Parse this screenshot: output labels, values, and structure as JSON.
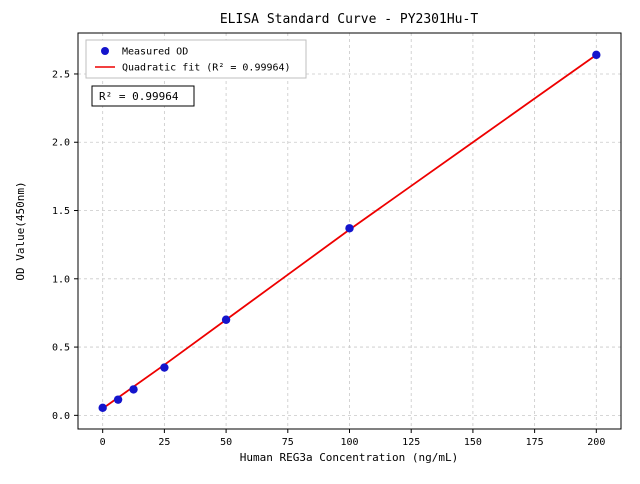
{
  "chart": {
    "colors": {
      "points": "#1414cc",
      "fit_line": "#ee0000",
      "grid": "#c9c9c9",
      "axes_border": "#000000",
      "legend_border": "#bfbfbf",
      "background": "#ffffff"
    }
  },
  "chart_data": {
    "type": "scatter",
    "title": "ELISA Standard Curve - PY2301Hu-T",
    "xlabel": "Human REG3a Concentration (ng/mL)",
    "ylabel": "OD Value(450nm)",
    "xlim": [
      -10,
      210
    ],
    "ylim": [
      -0.1,
      2.8
    ],
    "xticks": [
      0,
      25,
      50,
      75,
      100,
      125,
      150,
      175,
      200
    ],
    "yticks": [
      0.0,
      0.5,
      1.0,
      1.5,
      2.0,
      2.5
    ],
    "grid": true,
    "grid_style": "dashed",
    "legend_position": "upper left",
    "annotation": "R² = 0.99964",
    "r_squared": 0.99964,
    "series": [
      {
        "name": "Measured OD",
        "type": "scatter",
        "color": "#1414cc",
        "x": [
          0,
          6.25,
          12.5,
          25,
          50,
          100,
          200
        ],
        "y": [
          0.055,
          0.115,
          0.19,
          0.35,
          0.7,
          1.37,
          2.64
        ]
      },
      {
        "name": "Quadratic fit (R² = 0.99964)",
        "type": "line",
        "color": "#ee0000",
        "x": [
          0,
          25,
          50,
          75,
          100,
          125,
          150,
          175,
          200
        ],
        "y": [
          0.05,
          0.37,
          0.7,
          1.03,
          1.36,
          1.68,
          2.0,
          2.32,
          2.64
        ]
      }
    ]
  }
}
